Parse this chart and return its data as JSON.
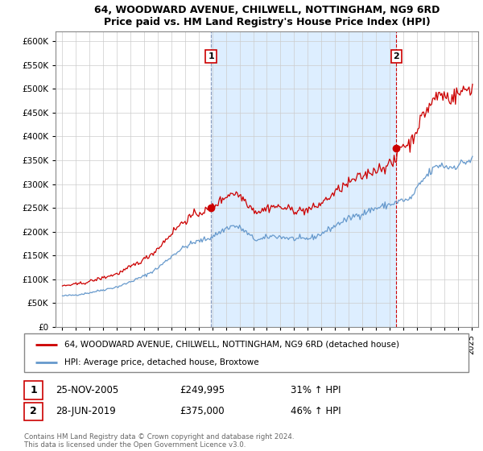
{
  "title1": "64, WOODWARD AVENUE, CHILWELL, NOTTINGHAM, NG9 6RD",
  "title2": "Price paid vs. HM Land Registry's House Price Index (HPI)",
  "legend_line1": "64, WOODWARD AVENUE, CHILWELL, NOTTINGHAM, NG9 6RD (detached house)",
  "legend_line2": "HPI: Average price, detached house, Broxtowe",
  "annotation1_label": "1",
  "annotation1_date": "25-NOV-2005",
  "annotation1_price": "£249,995",
  "annotation1_hpi": "31% ↑ HPI",
  "annotation2_label": "2",
  "annotation2_date": "28-JUN-2019",
  "annotation2_price": "£375,000",
  "annotation2_hpi": "46% ↑ HPI",
  "footer": "Contains HM Land Registry data © Crown copyright and database right 2024.\nThis data is licensed under the Open Government Licence v3.0.",
  "sale1_x": 2005.9,
  "sale1_y": 249995,
  "sale2_x": 2019.5,
  "sale2_y": 375000,
  "red_color": "#cc0000",
  "blue_color": "#6699cc",
  "vline_color": "#aaaacc",
  "shade_color": "#ddeeff",
  "ylim_min": 0,
  "ylim_max": 620000,
  "xlim_min": 1994.5,
  "xlim_max": 2025.5,
  "yticks": [
    0,
    50000,
    100000,
    150000,
    200000,
    250000,
    300000,
    350000,
    400000,
    450000,
    500000,
    550000,
    600000
  ],
  "ytick_labels": [
    "£0",
    "£50K",
    "£100K",
    "£150K",
    "£200K",
    "£250K",
    "£300K",
    "£350K",
    "£400K",
    "£450K",
    "£500K",
    "£550K",
    "£600K"
  ],
  "xticks": [
    1995,
    1996,
    1997,
    1998,
    1999,
    2000,
    2001,
    2002,
    2003,
    2004,
    2005,
    2006,
    2007,
    2008,
    2009,
    2010,
    2011,
    2012,
    2013,
    2014,
    2015,
    2016,
    2017,
    2018,
    2019,
    2020,
    2021,
    2022,
    2023,
    2024,
    2025
  ],
  "hpi_points": [
    [
      1995.0,
      65000
    ],
    [
      1995.083,
      65200
    ],
    [
      1995.167,
      65400
    ],
    [
      1995.25,
      65600
    ],
    [
      1995.333,
      65800
    ],
    [
      1995.417,
      66000
    ],
    [
      1995.5,
      66200
    ],
    [
      1995.583,
      66400
    ],
    [
      1995.667,
      66600
    ],
    [
      1995.75,
      66800
    ],
    [
      1995.833,
      67000
    ],
    [
      1995.917,
      67200
    ],
    [
      1996.0,
      67500
    ],
    [
      1996.25,
      68500
    ],
    [
      1996.5,
      69500
    ],
    [
      1996.75,
      70500
    ],
    [
      1997.0,
      72000
    ],
    [
      1997.25,
      73500
    ],
    [
      1997.5,
      75000
    ],
    [
      1997.75,
      76500
    ],
    [
      1998.0,
      78000
    ],
    [
      1998.25,
      79500
    ],
    [
      1998.5,
      81000
    ],
    [
      1998.75,
      82500
    ],
    [
      1999.0,
      84000
    ],
    [
      1999.25,
      86500
    ],
    [
      1999.5,
      89000
    ],
    [
      1999.75,
      92000
    ],
    [
      2000.0,
      95000
    ],
    [
      2000.25,
      98000
    ],
    [
      2000.5,
      101000
    ],
    [
      2000.75,
      104000
    ],
    [
      2001.0,
      107000
    ],
    [
      2001.25,
      111000
    ],
    [
      2001.5,
      115000
    ],
    [
      2001.75,
      119000
    ],
    [
      2002.0,
      124000
    ],
    [
      2002.25,
      130000
    ],
    [
      2002.5,
      136000
    ],
    [
      2002.75,
      142000
    ],
    [
      2003.0,
      148000
    ],
    [
      2003.25,
      154000
    ],
    [
      2003.5,
      159000
    ],
    [
      2003.75,
      164000
    ],
    [
      2004.0,
      168000
    ],
    [
      2004.25,
      172000
    ],
    [
      2004.5,
      175000
    ],
    [
      2004.75,
      178000
    ],
    [
      2005.0,
      180000
    ],
    [
      2005.25,
      182000
    ],
    [
      2005.5,
      184000
    ],
    [
      2005.75,
      186000
    ],
    [
      2006.0,
      190000
    ],
    [
      2006.25,
      194000
    ],
    [
      2006.5,
      198000
    ],
    [
      2006.75,
      202000
    ],
    [
      2007.0,
      207000
    ],
    [
      2007.25,
      210000
    ],
    [
      2007.5,
      212000
    ],
    [
      2007.75,
      211000
    ],
    [
      2008.0,
      208000
    ],
    [
      2008.25,
      204000
    ],
    [
      2008.5,
      198000
    ],
    [
      2008.75,
      192000
    ],
    [
      2009.0,
      186000
    ],
    [
      2009.25,
      183000
    ],
    [
      2009.5,
      183000
    ],
    [
      2009.75,
      185000
    ],
    [
      2010.0,
      188000
    ],
    [
      2010.25,
      190000
    ],
    [
      2010.5,
      191000
    ],
    [
      2010.75,
      190000
    ],
    [
      2011.0,
      189000
    ],
    [
      2011.25,
      188000
    ],
    [
      2011.5,
      187000
    ],
    [
      2011.75,
      186000
    ],
    [
      2012.0,
      185000
    ],
    [
      2012.25,
      184500
    ],
    [
      2012.5,
      184000
    ],
    [
      2012.75,
      184500
    ],
    [
      2013.0,
      185500
    ],
    [
      2013.25,
      187000
    ],
    [
      2013.5,
      189000
    ],
    [
      2013.75,
      192000
    ],
    [
      2014.0,
      196000
    ],
    [
      2014.25,
      200000
    ],
    [
      2014.5,
      204000
    ],
    [
      2014.75,
      208000
    ],
    [
      2015.0,
      212000
    ],
    [
      2015.25,
      217000
    ],
    [
      2015.5,
      221000
    ],
    [
      2015.75,
      224000
    ],
    [
      2016.0,
      227000
    ],
    [
      2016.25,
      231000
    ],
    [
      2016.5,
      234000
    ],
    [
      2016.75,
      236000
    ],
    [
      2017.0,
      238000
    ],
    [
      2017.25,
      241000
    ],
    [
      2017.5,
      244000
    ],
    [
      2017.75,
      247000
    ],
    [
      2018.0,
      249000
    ],
    [
      2018.25,
      251000
    ],
    [
      2018.5,
      253000
    ],
    [
      2018.75,
      255000
    ],
    [
      2019.0,
      257000
    ],
    [
      2019.25,
      259000
    ],
    [
      2019.5,
      261000
    ],
    [
      2019.75,
      264000
    ],
    [
      2020.0,
      267000
    ],
    [
      2020.25,
      265000
    ],
    [
      2020.5,
      268000
    ],
    [
      2020.75,
      278000
    ],
    [
      2021.0,
      290000
    ],
    [
      2021.25,
      300000
    ],
    [
      2021.5,
      310000
    ],
    [
      2021.75,
      318000
    ],
    [
      2022.0,
      325000
    ],
    [
      2022.25,
      332000
    ],
    [
      2022.5,
      338000
    ],
    [
      2022.75,
      340000
    ],
    [
      2023.0,
      338000
    ],
    [
      2023.25,
      336000
    ],
    [
      2023.5,
      335000
    ],
    [
      2023.75,
      337000
    ],
    [
      2024.0,
      340000
    ],
    [
      2024.25,
      343000
    ],
    [
      2024.5,
      346000
    ],
    [
      2024.75,
      348000
    ],
    [
      2025.0,
      350000
    ]
  ]
}
